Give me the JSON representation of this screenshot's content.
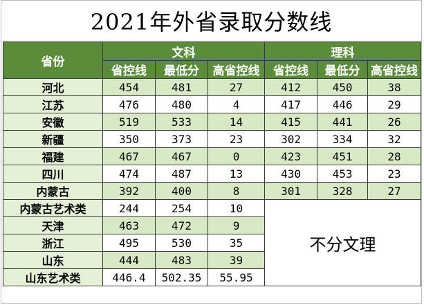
{
  "title": "2021年外省录取分数线",
  "header": {
    "province": "省份",
    "wenke": "文科",
    "like": "理科",
    "sub": [
      "省控线",
      "最低分",
      "高省控线"
    ]
  },
  "rows": [
    {
      "province": "河北",
      "wen": [
        "454",
        "481",
        "27"
      ],
      "li": [
        "412",
        "450",
        "38"
      ]
    },
    {
      "province": "江苏",
      "wen": [
        "476",
        "480",
        "4"
      ],
      "li": [
        "417",
        "446",
        "29"
      ]
    },
    {
      "province": "安徽",
      "wen": [
        "519",
        "533",
        "14"
      ],
      "li": [
        "415",
        "441",
        "26"
      ]
    },
    {
      "province": "新疆",
      "wen": [
        "350",
        "373",
        "23"
      ],
      "li": [
        "302",
        "334",
        "32"
      ]
    },
    {
      "province": "福建",
      "wen": [
        "467",
        "467",
        "0"
      ],
      "li": [
        "423",
        "451",
        "28"
      ]
    },
    {
      "province": "四川",
      "wen": [
        "474",
        "487",
        "13"
      ],
      "li": [
        "430",
        "453",
        "23"
      ]
    },
    {
      "province": "内蒙古",
      "wen": [
        "392",
        "400",
        "8"
      ],
      "li": [
        "301",
        "328",
        "27"
      ]
    },
    {
      "province": "内蒙古艺术类",
      "wen": [
        "244",
        "254",
        "10"
      ]
    },
    {
      "province": "天津",
      "wen": [
        "463",
        "472",
        "9"
      ]
    },
    {
      "province": "浙江",
      "wen": [
        "495",
        "530",
        "35"
      ]
    },
    {
      "province": "山东",
      "wen": [
        "444",
        "483",
        "39"
      ]
    },
    {
      "province": "山东艺术类",
      "wen": [
        "446.4",
        "502.35",
        "55.95"
      ]
    }
  ],
  "no_split_note": "不分文理"
}
